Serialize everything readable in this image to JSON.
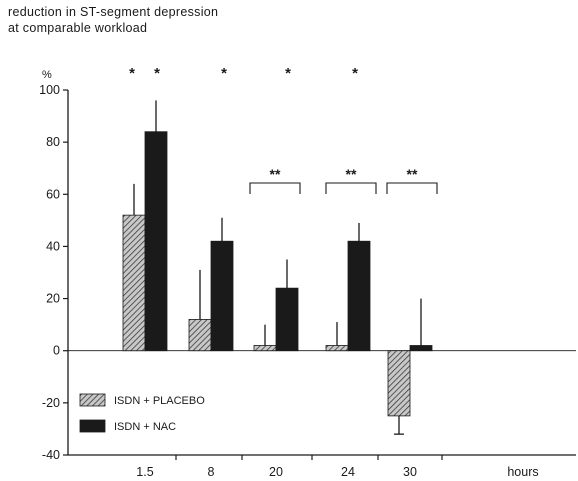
{
  "chart_data": {
    "type": "bar",
    "title_lines": [
      "reduction in ST-segment depression",
      "at comparable workload"
    ],
    "ylabel": "%",
    "xlabel": "hours",
    "ylim": [
      -40,
      100
    ],
    "yticks": [
      -40,
      -20,
      0,
      20,
      40,
      60,
      80,
      100
    ],
    "categories": [
      "1.5",
      "8",
      "20",
      "24",
      "30"
    ],
    "series": [
      {
        "name": "ISDN + PLACEBO",
        "values": [
          52,
          12,
          2,
          2,
          -25
        ],
        "err": [
          12,
          19,
          8,
          9,
          7
        ],
        "pattern": "hatched"
      },
      {
        "name": "ISDN + NAC",
        "values": [
          84,
          42,
          24,
          42,
          2
        ],
        "err": [
          12,
          9,
          11,
          7,
          18
        ],
        "pattern": "solid"
      }
    ],
    "significance_single": [
      {
        "category": "1.5",
        "series": "ISDN + PLACEBO",
        "mark": "*"
      },
      {
        "category": "1.5",
        "series": "ISDN + NAC",
        "mark": "*"
      },
      {
        "category": "8",
        "series": "ISDN + PLACEBO",
        "mark": "*"
      },
      {
        "category": "20",
        "series": "ISDN + PLACEBO",
        "mark": "*"
      },
      {
        "category": "24",
        "series": "ISDN + PLACEBO",
        "mark": "*"
      }
    ],
    "significance_pairs": [
      {
        "category": "20",
        "mark": "**"
      },
      {
        "category": "24",
        "mark": "**"
      },
      {
        "category": "30",
        "mark": "**"
      }
    ],
    "legend_position": "bottom-left",
    "grid": false,
    "colors": {
      "ink": "#1a1a1a",
      "hatch_bg": "#c8c8c8"
    }
  }
}
